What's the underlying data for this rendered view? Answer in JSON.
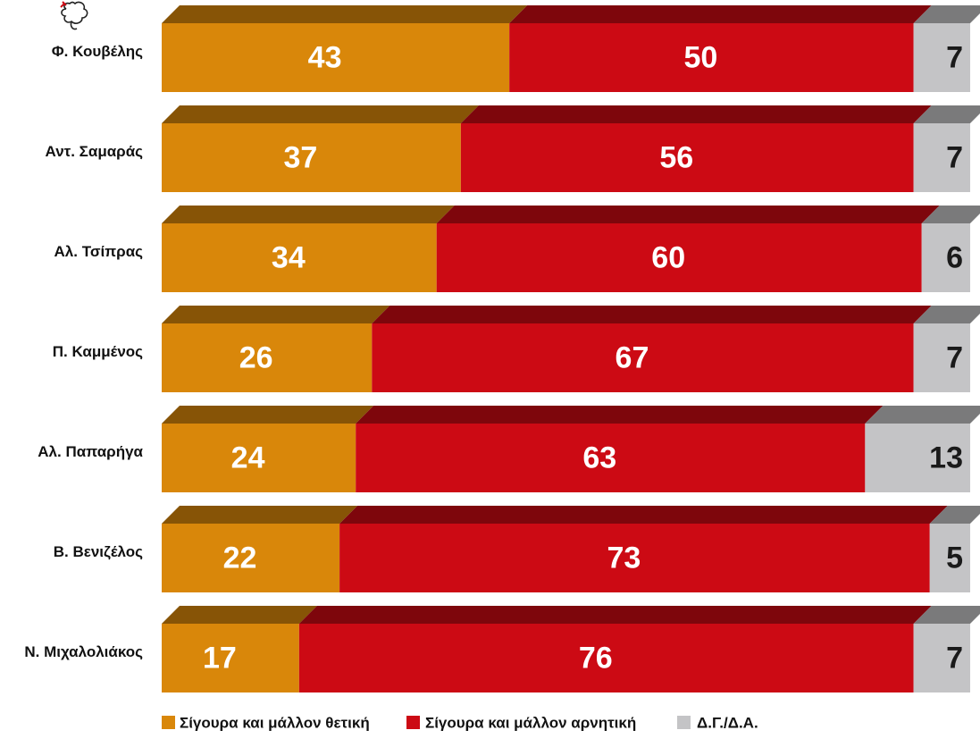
{
  "chart_data": {
    "type": "bar",
    "stacked": true,
    "orientation": "horizontal",
    "categories": [
      "Φ. Κουβέλης",
      "Αντ. Σαμαράς",
      "Αλ. Τσίπρας",
      "Π. Καμμένος",
      "Αλ. Παπαρήγα",
      "Β. Βενιζέλος",
      "Ν. Μιχαλολιάκος"
    ],
    "series": [
      {
        "name": "Σίγουρα και μάλλον θετική",
        "color": "#d9870a",
        "values": [
          43,
          37,
          34,
          26,
          24,
          22,
          17
        ]
      },
      {
        "name": "Σίγουρα και μάλλον αρνητική",
        "color": "#cc0a14",
        "values": [
          50,
          56,
          60,
          67,
          63,
          73,
          76
        ]
      },
      {
        "name": "Δ.Γ./Δ.Α.",
        "color": "#c4c4c6",
        "values": [
          7,
          7,
          6,
          7,
          13,
          5,
          7
        ]
      }
    ],
    "xlim": [
      0,
      100
    ],
    "grid": false,
    "legend_position": "bottom"
  }
}
